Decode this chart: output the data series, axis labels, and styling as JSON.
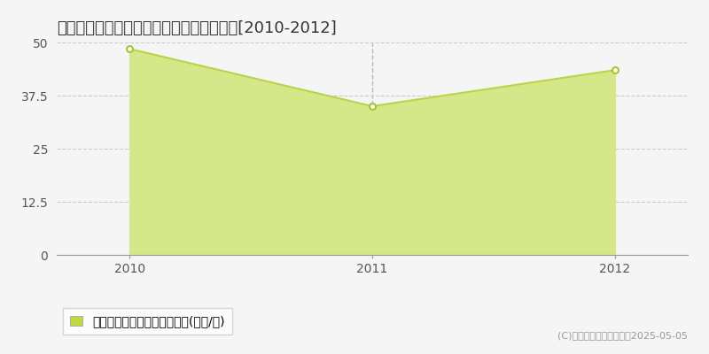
{
  "title": "各務原市蘇原沢上町　マンション価格推移[2010-2012]",
  "x": [
    2010,
    2011,
    2012
  ],
  "y": [
    48.5,
    35.0,
    43.5
  ],
  "line_color": "#b8d44a",
  "fill_color": "#d4e88a",
  "marker_facecolor": "#ffffff",
  "marker_edge_color": "#a8c435",
  "legend_square_color": "#c0d840",
  "bg_color": "#f5f5f5",
  "plot_bg_color": "#f5f5f5",
  "grid_color": "#cccccc",
  "vline_color": "#bbbbbb",
  "xlim": [
    2009.7,
    2012.3
  ],
  "ylim": [
    0,
    50
  ],
  "yticks": [
    0,
    12.5,
    25,
    37.5,
    50
  ],
  "xticks": [
    2010,
    2011,
    2012
  ],
  "legend_label": "マンション価格　平均坪単価(万円/坪)",
  "copyright_text": "(C)土地価格ドットコム　2025-05-05",
  "title_fontsize": 13,
  "tick_fontsize": 10,
  "legend_fontsize": 10,
  "copyright_fontsize": 8
}
